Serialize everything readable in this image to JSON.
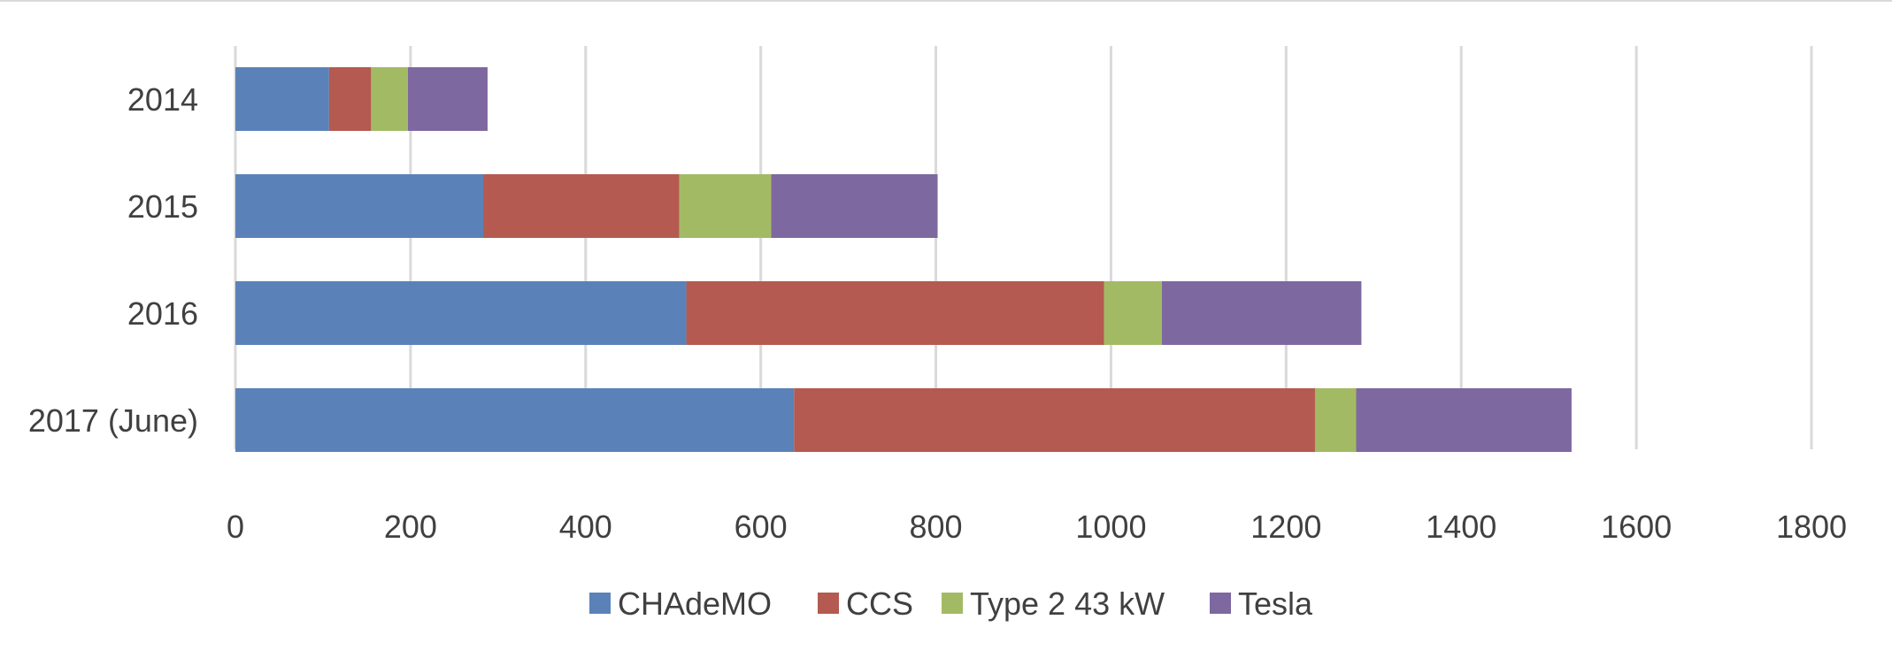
{
  "chart_data": {
    "type": "bar",
    "orientation": "horizontal",
    "stacked": true,
    "title": "",
    "xlabel": "",
    "ylabel": "",
    "categories": [
      "2014",
      "2015",
      "2016",
      "2017 (June)"
    ],
    "series": [
      {
        "name": "CHAdeMO",
        "color": "#5B82B8",
        "values": [
          107,
          283,
          515,
          638
        ]
      },
      {
        "name": "CCS",
        "color": "#B45A50",
        "values": [
          48,
          224,
          477,
          595
        ]
      },
      {
        "name": "Type 2 43 kW",
        "color": "#A3BA64",
        "values": [
          42,
          105,
          66,
          47
        ]
      },
      {
        "name": "Tesla",
        "color": "#7E68A0",
        "values": [
          91,
          190,
          228,
          246
        ]
      }
    ],
    "xlim": [
      0,
      1800
    ],
    "xticks": [
      "0",
      "200",
      "400",
      "600",
      "800",
      "1000",
      "1200",
      "1400",
      "1600",
      "1800"
    ],
    "grid": "vertical",
    "legend": "bottom"
  }
}
